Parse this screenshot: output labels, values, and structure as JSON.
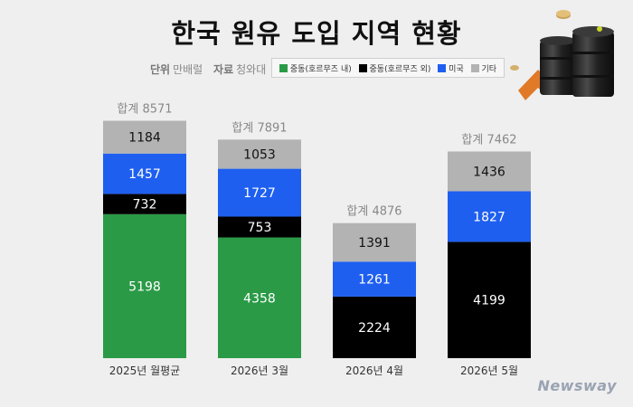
{
  "title": "한국 원유 도입 지역 현황",
  "unit_label": "단위",
  "unit_value": "만배럴",
  "source_label": "자료",
  "source_value": "청와대",
  "watermark": "Newsway",
  "colors": {
    "middle_east_inside": "#2a9a47",
    "middle_east_outside": "#000000",
    "usa": "#1e5ff0",
    "other": "#b3b3b3"
  },
  "chart_data": {
    "type": "bar",
    "stacked": true,
    "categories": [
      "2025년 월평균",
      "2026년 3월",
      "2026년 4월",
      "2026년 5월"
    ],
    "series": [
      {
        "name": "중동(호르무즈 내)",
        "color": "#2a9a47",
        "values": [
          5198,
          4358,
          0,
          0
        ]
      },
      {
        "name": "중동(호르무즈 외)",
        "color": "#000000",
        "values": [
          732,
          753,
          2224,
          4199
        ]
      },
      {
        "name": "미국",
        "color": "#1e5ff0",
        "values": [
          1457,
          1727,
          1261,
          1827
        ]
      },
      {
        "name": "기타",
        "color": "#b3b3b3",
        "values": [
          1184,
          1053,
          1391,
          1436
        ]
      }
    ],
    "totals_label": "합계",
    "totals": [
      8571,
      7891,
      4876,
      7462
    ],
    "legend_position": "top",
    "grid": false
  }
}
